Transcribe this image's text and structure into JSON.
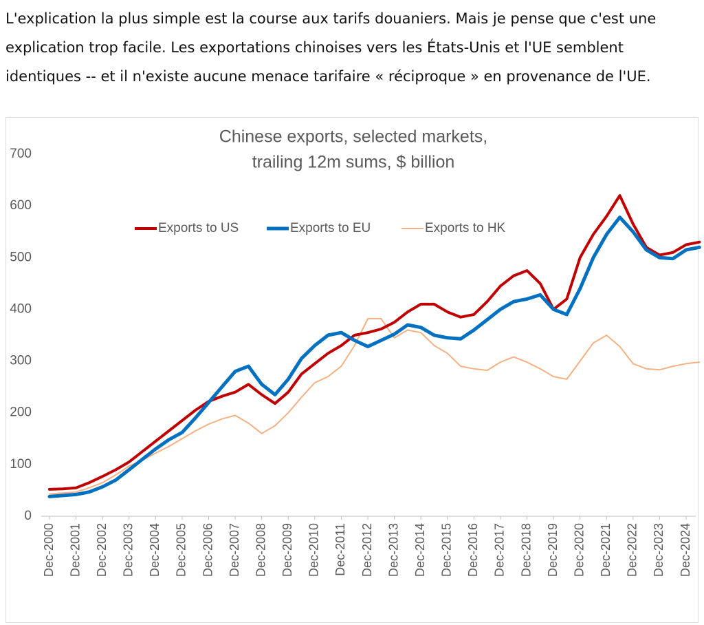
{
  "paragraph": {
    "lines": [
      "L'explication la plus simple est la course aux tarifs douaniers. Mais je pense que c'est une",
      "explication trop facile. Les exportations chinoises vers les États-Unis et l'UE semblent",
      "identiques -- et il n'existe aucune menace tarifaire « réciproque » en provenance de l'UE."
    ]
  },
  "chart_data": {
    "type": "line",
    "title": [
      "Chinese exports, selected markets,",
      "trailing 12m sums, $ billion"
    ],
    "categories": [
      "Dec-2000",
      null,
      "Dec-2001",
      null,
      "Dec-2002",
      null,
      "Dec-2003",
      null,
      "Dec-2004",
      null,
      "Dec-2005",
      null,
      "Dec-2006",
      null,
      "Dec-2007",
      null,
      "Dec-2008",
      null,
      "Dec-2009",
      null,
      "Dec-2010",
      null,
      "Dec-2011",
      null,
      "Dec-2012",
      null,
      "Dec-2013",
      null,
      "Dec-2014",
      null,
      "Dec-2015",
      null,
      "Dec-2016",
      null,
      "Dec-2017",
      null,
      "Dec-2018",
      null,
      "Dec-2019",
      null,
      "Dec-2020",
      null,
      "Dec-2021",
      null,
      "Dec-2022",
      null,
      "Dec-2023",
      null,
      "Dec-2024",
      null
    ],
    "series": [
      {
        "name": "Exports to US",
        "color": "#c00000",
        "values": [
          52,
          53,
          55,
          65,
          77,
          90,
          105,
          125,
          145,
          165,
          185,
          205,
          222,
          232,
          240,
          255,
          235,
          218,
          240,
          275,
          295,
          315,
          330,
          350,
          355,
          362,
          375,
          395,
          410,
          410,
          395,
          385,
          390,
          415,
          445,
          465,
          475,
          450,
          400,
          420,
          500,
          545,
          580,
          620,
          565,
          520,
          505,
          510,
          525,
          530
        ]
      },
      {
        "name": "Exports to EU",
        "color": "#0070c0",
        "values": [
          38,
          40,
          42,
          47,
          57,
          70,
          90,
          110,
          130,
          148,
          162,
          190,
          220,
          250,
          280,
          290,
          255,
          235,
          265,
          305,
          330,
          350,
          355,
          340,
          328,
          340,
          352,
          370,
          365,
          350,
          345,
          343,
          360,
          380,
          400,
          415,
          420,
          428,
          400,
          390,
          440,
          500,
          545,
          578,
          550,
          515,
          500,
          498,
          515,
          520
        ]
      },
      {
        "name": "Exports to HK",
        "color": "#f4b183",
        "values": [
          43,
          45,
          47,
          55,
          65,
          80,
          97,
          108,
          122,
          135,
          150,
          165,
          178,
          188,
          195,
          180,
          160,
          175,
          200,
          230,
          258,
          270,
          290,
          330,
          382,
          382,
          345,
          360,
          355,
          330,
          315,
          290,
          285,
          282,
          298,
          308,
          298,
          285,
          270,
          265,
          300,
          335,
          350,
          328,
          295,
          285,
          283,
          290,
          295,
          298
        ]
      }
    ],
    "ylim": [
      0,
      700
    ],
    "yticks": [
      0,
      100,
      200,
      300,
      400,
      500,
      600,
      700
    ],
    "grid": false,
    "legend": "top"
  }
}
